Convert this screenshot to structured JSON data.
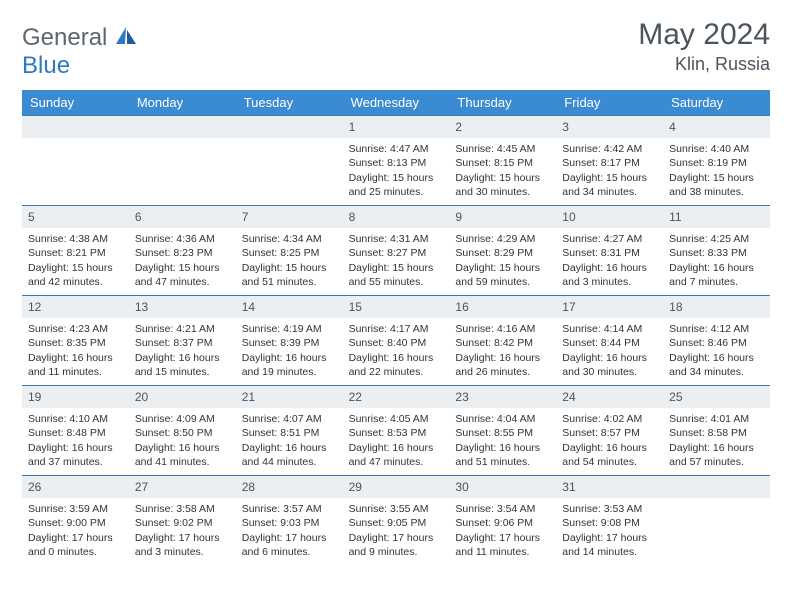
{
  "logo": {
    "text1": "General",
    "text2": "Blue"
  },
  "title": "May 2024",
  "location": "Klin, Russia",
  "colors": {
    "header_bar": "#3b8bd2",
    "cell_border": "#3b78b5",
    "daynum_bg": "#eceff1",
    "text_gray": "#4a545d",
    "logo_gray": "#5b6670",
    "logo_blue": "#2f78c4"
  },
  "days_of_week": [
    "Sunday",
    "Monday",
    "Tuesday",
    "Wednesday",
    "Thursday",
    "Friday",
    "Saturday"
  ],
  "layout": {
    "columns": 7,
    "rows": 5,
    "lead_blanks": 3
  },
  "days": [
    {
      "n": 1,
      "sunrise": "4:47 AM",
      "sunset": "8:13 PM",
      "daylight": "15 hours and 25 minutes."
    },
    {
      "n": 2,
      "sunrise": "4:45 AM",
      "sunset": "8:15 PM",
      "daylight": "15 hours and 30 minutes."
    },
    {
      "n": 3,
      "sunrise": "4:42 AM",
      "sunset": "8:17 PM",
      "daylight": "15 hours and 34 minutes."
    },
    {
      "n": 4,
      "sunrise": "4:40 AM",
      "sunset": "8:19 PM",
      "daylight": "15 hours and 38 minutes."
    },
    {
      "n": 5,
      "sunrise": "4:38 AM",
      "sunset": "8:21 PM",
      "daylight": "15 hours and 42 minutes."
    },
    {
      "n": 6,
      "sunrise": "4:36 AM",
      "sunset": "8:23 PM",
      "daylight": "15 hours and 47 minutes."
    },
    {
      "n": 7,
      "sunrise": "4:34 AM",
      "sunset": "8:25 PM",
      "daylight": "15 hours and 51 minutes."
    },
    {
      "n": 8,
      "sunrise": "4:31 AM",
      "sunset": "8:27 PM",
      "daylight": "15 hours and 55 minutes."
    },
    {
      "n": 9,
      "sunrise": "4:29 AM",
      "sunset": "8:29 PM",
      "daylight": "15 hours and 59 minutes."
    },
    {
      "n": 10,
      "sunrise": "4:27 AM",
      "sunset": "8:31 PM",
      "daylight": "16 hours and 3 minutes."
    },
    {
      "n": 11,
      "sunrise": "4:25 AM",
      "sunset": "8:33 PM",
      "daylight": "16 hours and 7 minutes."
    },
    {
      "n": 12,
      "sunrise": "4:23 AM",
      "sunset": "8:35 PM",
      "daylight": "16 hours and 11 minutes."
    },
    {
      "n": 13,
      "sunrise": "4:21 AM",
      "sunset": "8:37 PM",
      "daylight": "16 hours and 15 minutes."
    },
    {
      "n": 14,
      "sunrise": "4:19 AM",
      "sunset": "8:39 PM",
      "daylight": "16 hours and 19 minutes."
    },
    {
      "n": 15,
      "sunrise": "4:17 AM",
      "sunset": "8:40 PM",
      "daylight": "16 hours and 22 minutes."
    },
    {
      "n": 16,
      "sunrise": "4:16 AM",
      "sunset": "8:42 PM",
      "daylight": "16 hours and 26 minutes."
    },
    {
      "n": 17,
      "sunrise": "4:14 AM",
      "sunset": "8:44 PM",
      "daylight": "16 hours and 30 minutes."
    },
    {
      "n": 18,
      "sunrise": "4:12 AM",
      "sunset": "8:46 PM",
      "daylight": "16 hours and 34 minutes."
    },
    {
      "n": 19,
      "sunrise": "4:10 AM",
      "sunset": "8:48 PM",
      "daylight": "16 hours and 37 minutes."
    },
    {
      "n": 20,
      "sunrise": "4:09 AM",
      "sunset": "8:50 PM",
      "daylight": "16 hours and 41 minutes."
    },
    {
      "n": 21,
      "sunrise": "4:07 AM",
      "sunset": "8:51 PM",
      "daylight": "16 hours and 44 minutes."
    },
    {
      "n": 22,
      "sunrise": "4:05 AM",
      "sunset": "8:53 PM",
      "daylight": "16 hours and 47 minutes."
    },
    {
      "n": 23,
      "sunrise": "4:04 AM",
      "sunset": "8:55 PM",
      "daylight": "16 hours and 51 minutes."
    },
    {
      "n": 24,
      "sunrise": "4:02 AM",
      "sunset": "8:57 PM",
      "daylight": "16 hours and 54 minutes."
    },
    {
      "n": 25,
      "sunrise": "4:01 AM",
      "sunset": "8:58 PM",
      "daylight": "16 hours and 57 minutes."
    },
    {
      "n": 26,
      "sunrise": "3:59 AM",
      "sunset": "9:00 PM",
      "daylight": "17 hours and 0 minutes."
    },
    {
      "n": 27,
      "sunrise": "3:58 AM",
      "sunset": "9:02 PM",
      "daylight": "17 hours and 3 minutes."
    },
    {
      "n": 28,
      "sunrise": "3:57 AM",
      "sunset": "9:03 PM",
      "daylight": "17 hours and 6 minutes."
    },
    {
      "n": 29,
      "sunrise": "3:55 AM",
      "sunset": "9:05 PM",
      "daylight": "17 hours and 9 minutes."
    },
    {
      "n": 30,
      "sunrise": "3:54 AM",
      "sunset": "9:06 PM",
      "daylight": "17 hours and 11 minutes."
    },
    {
      "n": 31,
      "sunrise": "3:53 AM",
      "sunset": "9:08 PM",
      "daylight": "17 hours and 14 minutes."
    }
  ],
  "labels": {
    "sunrise": "Sunrise:",
    "sunset": "Sunset:",
    "daylight": "Daylight:"
  }
}
